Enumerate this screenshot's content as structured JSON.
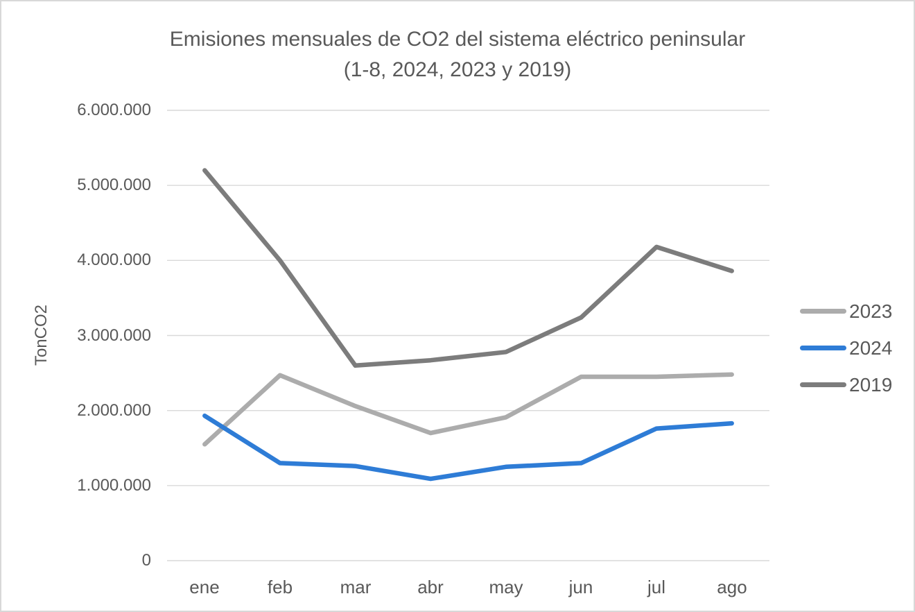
{
  "title": {
    "line1": "Emisiones mensuales de CO2 del sistema eléctrico peninsular",
    "line2": "(1-8, 2024, 2023 y 2019)"
  },
  "chart_data": {
    "type": "line",
    "title": "Emisiones mensuales de CO2 del sistema eléctrico peninsular (1-8, 2024, 2023 y 2019)",
    "ylabel": "TonCO2",
    "xlabel": "",
    "categories": [
      "ene",
      "feb",
      "mar",
      "abr",
      "may",
      "jun",
      "jul",
      "ago"
    ],
    "series": [
      {
        "name": "2023",
        "color": "#acacac",
        "values": [
          1550000,
          2470000,
          2060000,
          1700000,
          1910000,
          2450000,
          2450000,
          2480000
        ]
      },
      {
        "name": "2024",
        "color": "#2e7cd6",
        "values": [
          1930000,
          1300000,
          1260000,
          1090000,
          1250000,
          1300000,
          1760000,
          1830000
        ]
      },
      {
        "name": "2019",
        "color": "#7c7c7c",
        "values": [
          5200000,
          4000000,
          2600000,
          2670000,
          2780000,
          3240000,
          4180000,
          3860000
        ]
      }
    ],
    "draw_order": [
      "2023",
      "2019",
      "2024"
    ],
    "legend_order": [
      "2023",
      "2024",
      "2019"
    ],
    "legend_position": "right",
    "ylim": [
      0,
      6000000
    ],
    "yticks": [
      0,
      1000000,
      2000000,
      3000000,
      4000000,
      5000000,
      6000000
    ],
    "ytick_labels": [
      "0",
      "1.000.000",
      "2.000.000",
      "3.000.000",
      "4.000.000",
      "5.000.000",
      "6.000.000"
    ],
    "grid": "horizontal"
  },
  "colors": {
    "text": "#595959",
    "gridline": "#d9d9d9",
    "border": "#d8d8d8",
    "background": "#ffffff"
  }
}
